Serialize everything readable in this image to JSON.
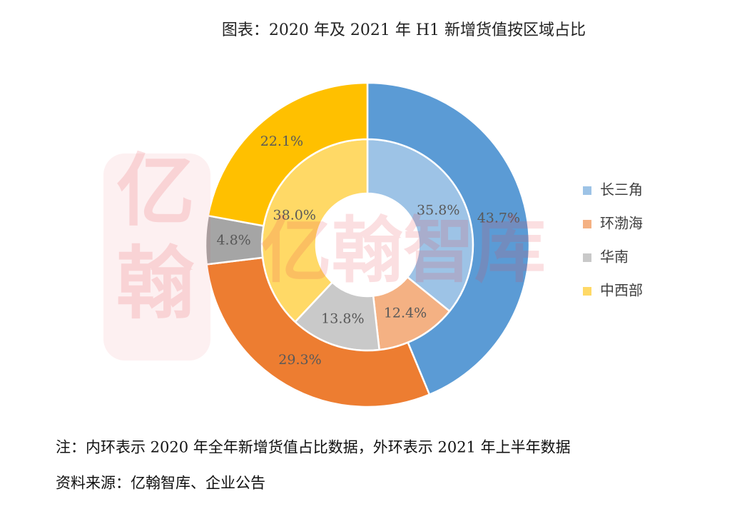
{
  "chart_data": {
    "type": "donut",
    "title": "图表：2020 年及 2021 年 H1 新增货值按区域占比",
    "categories": [
      "长三角",
      "环渤海",
      "华南",
      "中西部"
    ],
    "series": [
      {
        "values": [
          35.8,
          12.4,
          13.8,
          38.0
        ],
        "value_labels": [
          "35.8%",
          "12.4%",
          "13.8%",
          "38.0%"
        ],
        "colors": [
          "#9dc3e6",
          "#f4b183",
          "#c9c9c9",
          "#ffd966"
        ]
      },
      {
        "values": [
          43.7,
          29.3,
          4.8,
          22.1
        ],
        "value_labels": [
          "43.7%",
          "29.3%",
          "4.8%",
          "22.1%"
        ],
        "colors": [
          "#5b9bd5",
          "#ed7d31",
          "#a5a5a5",
          "#ffc000"
        ]
      }
    ],
    "legend": "right",
    "note": "注：内环表示 2020 年全年新增货值占比数据，外环表示 2021 年上半年数据",
    "source": "资料来源：亿翰智库、企业公告",
    "watermark": {
      "main": "亿翰智库",
      "logo": [
        "亿",
        "翰"
      ]
    }
  }
}
